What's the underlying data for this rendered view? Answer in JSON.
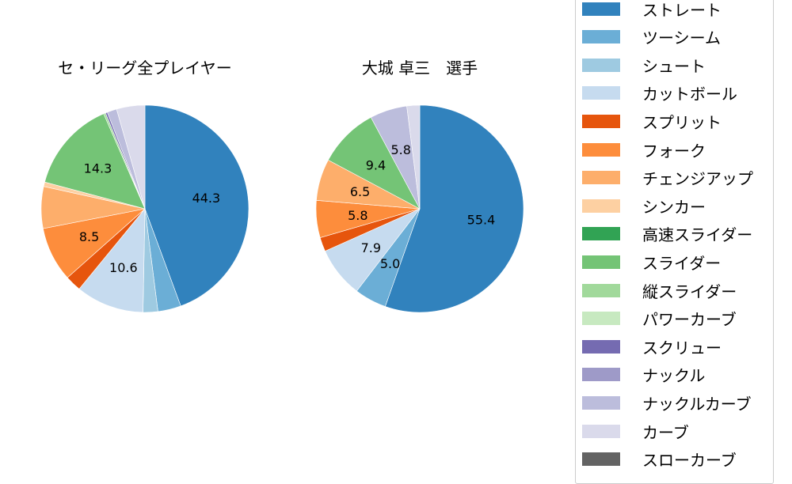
{
  "chart_data": [
    {
      "type": "pie",
      "title": "セ・リーグ全プレイヤー",
      "start_angle": 90,
      "direction": "clockwise",
      "categories": [
        "ストレート",
        "ツーシーム",
        "シュート",
        "カットボール",
        "スプリット",
        "フォーク",
        "チェンジアップ",
        "シンカー",
        "スライダー",
        "縦スライダー",
        "スクリュー",
        "ナックルカーブ",
        "カーブ"
      ],
      "values": [
        44.3,
        3.6,
        2.3,
        10.6,
        2.5,
        8.5,
        6.5,
        0.7,
        14.3,
        0.3,
        0.3,
        1.5,
        4.4
      ],
      "labels_shown": [
        "44.3",
        "10.6",
        "8.5",
        "14.3"
      ]
    },
    {
      "type": "pie",
      "title": "大城 卓三　選手",
      "start_angle": 90,
      "direction": "clockwise",
      "categories": [
        "ストレート",
        "ツーシーム",
        "カットボール",
        "スプリット",
        "フォーク",
        "チェンジアップ",
        "スライダー",
        "ナックルカーブ",
        "カーブ"
      ],
      "values": [
        55.4,
        5.0,
        7.9,
        2.2,
        5.8,
        6.5,
        9.4,
        5.8,
        2.0
      ],
      "labels_shown": [
        "55.4",
        "5.0",
        "7.9",
        "5.8",
        "6.5",
        "9.4",
        "5.8"
      ]
    }
  ],
  "titles": {
    "left": "セ・リーグ全プレイヤー",
    "right": "大城 卓三　選手"
  },
  "legend": [
    {
      "label": "ストレート",
      "color": "#3182bd"
    },
    {
      "label": "ツーシーム",
      "color": "#6baed6"
    },
    {
      "label": "シュート",
      "color": "#9ecae1"
    },
    {
      "label": "カットボール",
      "color": "#c6dbef"
    },
    {
      "label": "スプリット",
      "color": "#e6550d"
    },
    {
      "label": "フォーク",
      "color": "#fd8d3c"
    },
    {
      "label": "チェンジアップ",
      "color": "#fdae6b"
    },
    {
      "label": "シンカー",
      "color": "#fdd0a2"
    },
    {
      "label": "高速スライダー",
      "color": "#31a354"
    },
    {
      "label": "スライダー",
      "color": "#74c476"
    },
    {
      "label": "縦スライダー",
      "color": "#a1d99b"
    },
    {
      "label": "パワーカーブ",
      "color": "#c7e9c0"
    },
    {
      "label": "スクリュー",
      "color": "#756bb1"
    },
    {
      "label": "ナックル",
      "color": "#9e9ac8"
    },
    {
      "label": "ナックルカーブ",
      "color": "#bcbddc"
    },
    {
      "label": "カーブ",
      "color": "#dadaeb"
    },
    {
      "label": "スローカーブ",
      "color": "#636363"
    }
  ]
}
